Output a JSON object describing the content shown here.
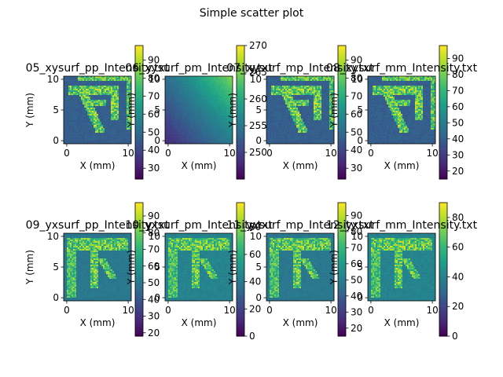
{
  "figure": {
    "title": "Simple scatter plot"
  },
  "colormap": "viridis",
  "colormap_stops": [
    "#440154",
    "#482878",
    "#3e4989",
    "#31688e",
    "#26828e",
    "#1f9e89",
    "#35b779",
    "#6ece58",
    "#b5de2b",
    "#fde725"
  ],
  "chart_data": [
    {
      "type": "heatmap",
      "title": "05_xysurf_pp_Intensity.txt",
      "xlabel": "X (mm)",
      "ylabel": "Y (mm)",
      "xlim": [
        -0.5,
        10.5
      ],
      "ylim": [
        -0.5,
        10.5
      ],
      "xticks": [
        "0",
        "10"
      ],
      "yticks": [
        "0",
        "5",
        "10"
      ],
      "pattern": "glyph-ra",
      "colorbar": {
        "min": 24,
        "max": 98,
        "ticks": [
          "30",
          "40",
          "50",
          "60",
          "70",
          "80",
          "90"
        ]
      }
    },
    {
      "type": "heatmap",
      "title": "06_xysurf_pm_Intensity.txt",
      "xlabel": "X (mm)",
      "ylabel": "Y (mm)",
      "xlim": [
        -0.5,
        10.5
      ],
      "ylim": [
        -0.5,
        10.5
      ],
      "xticks": [
        "0",
        "10"
      ],
      "yticks": [
        "0",
        "5",
        "10"
      ],
      "pattern": "diagonal-gradient",
      "colorbar": {
        "min": 245,
        "max": 270,
        "ticks": [
          "250",
          "255",
          "260",
          "265",
          "270"
        ]
      }
    },
    {
      "type": "heatmap",
      "title": "07_xysurf_mp_Intensity.txt",
      "xlabel": "X (mm)",
      "ylabel": "Y (mm)",
      "xlim": [
        -0.5,
        10.5
      ],
      "ylim": [
        -0.5,
        10.5
      ],
      "xticks": [
        "0",
        "10"
      ],
      "yticks": [
        "0",
        "5",
        "10"
      ],
      "pattern": "glyph-ra",
      "colorbar": {
        "min": 24,
        "max": 98,
        "ticks": [
          "30",
          "40",
          "50",
          "60",
          "70",
          "80",
          "90"
        ]
      }
    },
    {
      "type": "heatmap",
      "title": "08_xysurf_mm_Intensity.txt",
      "xlabel": "X (mm)",
      "ylabel": "Y (mm)",
      "xlim": [
        -0.5,
        10.5
      ],
      "ylim": [
        -0.5,
        10.5
      ],
      "xticks": [
        "0",
        "10"
      ],
      "yticks": [
        "0",
        "5",
        "10"
      ],
      "pattern": "glyph-ra",
      "colorbar": {
        "min": 15,
        "max": 98,
        "ticks": [
          "20",
          "30",
          "40",
          "50",
          "60",
          "70",
          "80",
          "90"
        ]
      }
    },
    {
      "type": "heatmap",
      "title": "09_yxsurf_pp_Intensity.txt",
      "xlabel": "X (mm)",
      "ylabel": "Y (mm)",
      "xlim": [
        -0.5,
        10.5
      ],
      "ylim": [
        -0.5,
        10.5
      ],
      "xticks": [
        "0",
        "10"
      ],
      "yticks": [
        "0",
        "5",
        "10"
      ],
      "pattern": "glyph-shita",
      "colorbar": {
        "min": 18,
        "max": 98,
        "ticks": [
          "20",
          "30",
          "40",
          "50",
          "60",
          "70",
          "80",
          "90"
        ]
      }
    },
    {
      "type": "heatmap",
      "title": "10_yxsurf_pm_Intensity.txt",
      "xlabel": "X (mm)",
      "ylabel": "Y (mm)",
      "xlim": [
        -0.5,
        10.5
      ],
      "ylim": [
        -0.5,
        10.5
      ],
      "xticks": [
        "0",
        "10"
      ],
      "yticks": [
        "0",
        "5",
        "10"
      ],
      "pattern": "glyph-shita",
      "colorbar": {
        "min": 0,
        "max": 98,
        "ticks": [
          "0",
          "20",
          "40",
          "60",
          "80"
        ]
      }
    },
    {
      "type": "heatmap",
      "title": "11_yxsurf_mp_Intensity.txt",
      "xlabel": "X (mm)",
      "ylabel": "Y (mm)",
      "xlim": [
        -0.5,
        10.5
      ],
      "ylim": [
        -0.5,
        10.5
      ],
      "xticks": [
        "0",
        "10"
      ],
      "yticks": [
        "0",
        "5",
        "10"
      ],
      "pattern": "glyph-shita",
      "colorbar": {
        "min": 15,
        "max": 98,
        "ticks": [
          "20",
          "30",
          "40",
          "50",
          "60",
          "70",
          "80",
          "90"
        ]
      }
    },
    {
      "type": "heatmap",
      "title": "12_yxsurf_mm_Intensity.txt",
      "xlabel": "X (mm)",
      "ylabel": "Y (mm)",
      "xlim": [
        -0.5,
        10.5
      ],
      "ylim": [
        -0.5,
        10.5
      ],
      "xticks": [
        "0",
        "10"
      ],
      "yticks": [
        "0",
        "5",
        "10"
      ],
      "pattern": "glyph-shita",
      "colorbar": {
        "min": 0,
        "max": 90,
        "ticks": [
          "0",
          "20",
          "40",
          "60",
          "80"
        ]
      }
    }
  ]
}
